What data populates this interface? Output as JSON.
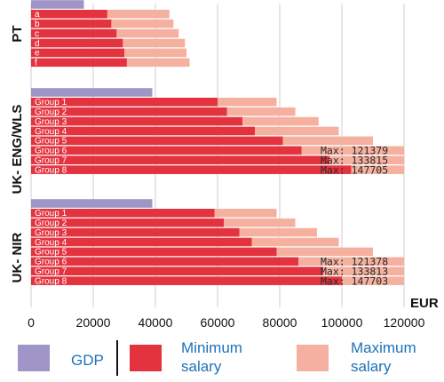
{
  "colors": {
    "gdp": "#9f95c6",
    "minimum": "#e3333f",
    "maximum": "#f5b09f",
    "grid": "#cfcfcf",
    "legend_text": "#1e72b8"
  },
  "chart_data": {
    "type": "bar",
    "orientation": "horizontal",
    "stacked_overlay": true,
    "xlim": [
      0,
      120000
    ],
    "x_ticks": [
      "0",
      "20000",
      "40000",
      "60000",
      "80000",
      "100000",
      "120000"
    ],
    "x_tick_values": [
      0,
      20000,
      40000,
      60000,
      80000,
      100000,
      120000
    ],
    "x_unit_label": "EUR",
    "grid": true,
    "series_legend": {
      "gdp": "GDP",
      "minimum": "Minimum salary",
      "maximum": "Maximum salary"
    },
    "groups": [
      {
        "title": "PT",
        "gdp": 17000,
        "bars": [
          {
            "label": "a",
            "min": 24500,
            "max": 44500,
            "max_label": ""
          },
          {
            "label": "b",
            "min": 25800,
            "max": 45800,
            "max_label": ""
          },
          {
            "label": "c",
            "min": 27500,
            "max": 47500,
            "max_label": ""
          },
          {
            "label": "d",
            "min": 29500,
            "max": 49500,
            "max_label": ""
          },
          {
            "label": "e",
            "min": 30000,
            "max": 50000,
            "max_label": ""
          },
          {
            "label": "f",
            "min": 30800,
            "max": 51000,
            "max_label": ""
          }
        ]
      },
      {
        "title": "UK- ENG/WLS",
        "gdp": 39000,
        "bars": [
          {
            "label": "Group 1",
            "min": 60000,
            "max": 79000,
            "max_label": ""
          },
          {
            "label": "Group 2",
            "min": 63000,
            "max": 85000,
            "max_label": ""
          },
          {
            "label": "Group 3",
            "min": 68000,
            "max": 92500,
            "max_label": ""
          },
          {
            "label": "Group 4",
            "min": 72000,
            "max": 99000,
            "max_label": ""
          },
          {
            "label": "Group 5",
            "min": 81000,
            "max": 110000,
            "max_label": ""
          },
          {
            "label": "Group 6",
            "min": 87000,
            "max": 121379,
            "max_label": "Max: 121379"
          },
          {
            "label": "Group 7",
            "min": 96000,
            "max": 133815,
            "max_label": "Max: 133815"
          },
          {
            "label": "Group 8",
            "min": 103000,
            "max": 147705,
            "max_label": "Max: 147705"
          }
        ]
      },
      {
        "title": "UK- NIR",
        "gdp": 39000,
        "bars": [
          {
            "label": "Group 1",
            "min": 59000,
            "max": 79000,
            "max_label": ""
          },
          {
            "label": "Group 2",
            "min": 62000,
            "max": 85000,
            "max_label": ""
          },
          {
            "label": "Group 3",
            "min": 67000,
            "max": 92000,
            "max_label": ""
          },
          {
            "label": "Group 4",
            "min": 71000,
            "max": 99000,
            "max_label": ""
          },
          {
            "label": "Group 5",
            "min": 79000,
            "max": 110000,
            "max_label": ""
          },
          {
            "label": "Group 6",
            "min": 86000,
            "max": 121378,
            "max_label": "Max: 121378"
          },
          {
            "label": "Group 7",
            "min": 94000,
            "max": 133813,
            "max_label": "Max: 133813"
          },
          {
            "label": "Group 8",
            "min": 100000,
            "max": 147703,
            "max_label": "Max: 147703"
          }
        ]
      }
    ]
  }
}
